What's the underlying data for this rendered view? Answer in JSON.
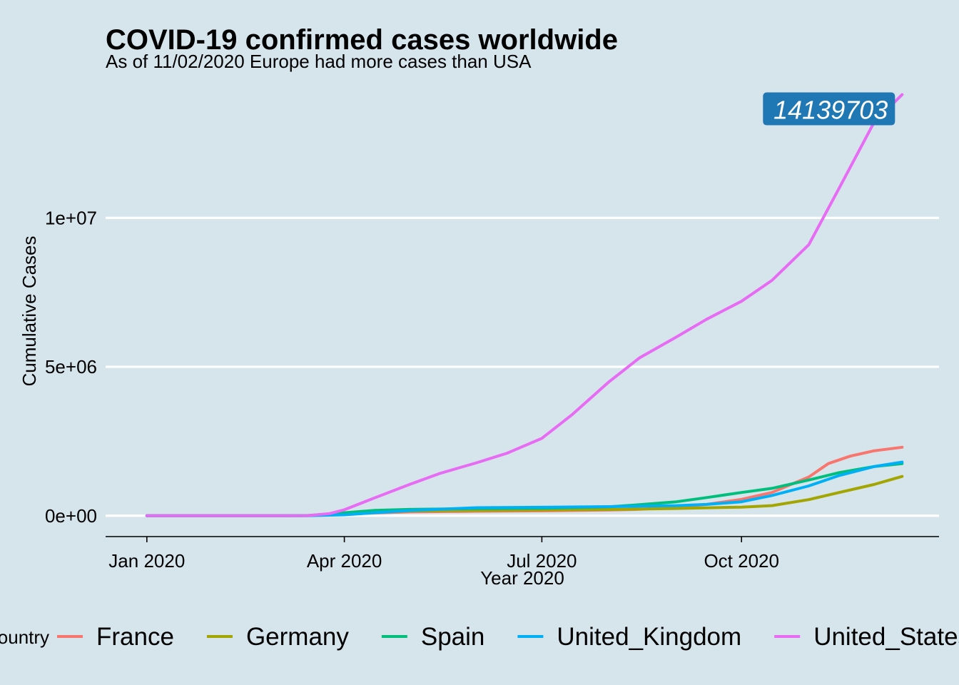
{
  "chart_data": {
    "type": "line",
    "title": "COVID-19 confirmed cases worldwide",
    "subtitle": "As of 11/02/2020 Europe had more cases than USA",
    "xlabel": "Year 2020",
    "ylabel": "Cumulative Cases",
    "x_ticks": [
      {
        "date": "2020-01-01",
        "label": "Jan 2020"
      },
      {
        "date": "2020-04-01",
        "label": "Apr 2020"
      },
      {
        "date": "2020-07-01",
        "label": "Jul 2020"
      },
      {
        "date": "2020-10-01",
        "label": "Oct 2020"
      }
    ],
    "y_ticks": [
      {
        "value": 0,
        "label": "0e+00"
      },
      {
        "value": 5000000,
        "label": "5e+06"
      },
      {
        "value": 10000000,
        "label": "1e+07"
      }
    ],
    "xlim": [
      "2019-12-13",
      "2020-12-31"
    ],
    "ylim": [
      -700000,
      14800000
    ],
    "grid": "horizontal major lines",
    "legend_title": "Country",
    "legend_position": "bottom",
    "annotation": {
      "label": "14139703",
      "date": "2020-12-14",
      "value": 14139703,
      "fill": "#1f78b4"
    },
    "series": [
      {
        "name": "France",
        "color": "#f8766d",
        "points": [
          [
            "2020-01-01",
            0
          ],
          [
            "2020-03-01",
            100
          ],
          [
            "2020-03-15",
            5000
          ],
          [
            "2020-04-01",
            60000
          ],
          [
            "2020-05-01",
            130000
          ],
          [
            "2020-06-01",
            150000
          ],
          [
            "2020-07-01",
            165000
          ],
          [
            "2020-08-01",
            190000
          ],
          [
            "2020-08-15",
            215000
          ],
          [
            "2020-09-01",
            290000
          ],
          [
            "2020-09-15",
            380000
          ],
          [
            "2020-10-01",
            550000
          ],
          [
            "2020-10-15",
            780000
          ],
          [
            "2020-11-01",
            1300000
          ],
          [
            "2020-11-10",
            1750000
          ],
          [
            "2020-11-20",
            2000000
          ],
          [
            "2020-12-01",
            2180000
          ],
          [
            "2020-12-14",
            2300000
          ]
        ]
      },
      {
        "name": "Germany",
        "color": "#a3a500",
        "points": [
          [
            "2020-01-01",
            0
          ],
          [
            "2020-03-01",
            100
          ],
          [
            "2020-03-15",
            6000
          ],
          [
            "2020-04-01",
            70000
          ],
          [
            "2020-05-01",
            160000
          ],
          [
            "2020-06-01",
            182000
          ],
          [
            "2020-07-01",
            195000
          ],
          [
            "2020-08-01",
            210000
          ],
          [
            "2020-09-01",
            245000
          ],
          [
            "2020-10-01",
            290000
          ],
          [
            "2020-10-15",
            340000
          ],
          [
            "2020-11-01",
            540000
          ],
          [
            "2020-11-15",
            780000
          ],
          [
            "2020-12-01",
            1050000
          ],
          [
            "2020-12-14",
            1320000
          ]
        ]
      },
      {
        "name": "Spain",
        "color": "#00bf7d",
        "points": [
          [
            "2020-01-01",
            0
          ],
          [
            "2020-03-01",
            80
          ],
          [
            "2020-03-15",
            7000
          ],
          [
            "2020-04-01",
            100000
          ],
          [
            "2020-04-15",
            180000
          ],
          [
            "2020-05-01",
            213000
          ],
          [
            "2020-06-01",
            240000
          ],
          [
            "2020-07-01",
            250000
          ],
          [
            "2020-08-01",
            300000
          ],
          [
            "2020-08-15",
            370000
          ],
          [
            "2020-09-01",
            470000
          ],
          [
            "2020-09-15",
            610000
          ],
          [
            "2020-10-01",
            780000
          ],
          [
            "2020-10-15",
            920000
          ],
          [
            "2020-11-01",
            1200000
          ],
          [
            "2020-11-15",
            1450000
          ],
          [
            "2020-12-01",
            1650000
          ],
          [
            "2020-12-14",
            1750000
          ]
        ]
      },
      {
        "name": "United_Kingdom",
        "color": "#00b0f6",
        "points": [
          [
            "2020-01-01",
            0
          ],
          [
            "2020-03-01",
            40
          ],
          [
            "2020-03-15",
            1400
          ],
          [
            "2020-04-01",
            30000
          ],
          [
            "2020-04-15",
            100000
          ],
          [
            "2020-05-01",
            175000
          ],
          [
            "2020-06-01",
            270000
          ],
          [
            "2020-07-01",
            285000
          ],
          [
            "2020-08-01",
            305000
          ],
          [
            "2020-09-01",
            340000
          ],
          [
            "2020-09-15",
            380000
          ],
          [
            "2020-10-01",
            470000
          ],
          [
            "2020-10-15",
            680000
          ],
          [
            "2020-11-01",
            1000000
          ],
          [
            "2020-11-15",
            1350000
          ],
          [
            "2020-12-01",
            1650000
          ],
          [
            "2020-12-14",
            1800000
          ]
        ]
      },
      {
        "name": "United_States_of_America",
        "color": "#e76bf3",
        "points": [
          [
            "2020-01-01",
            0
          ],
          [
            "2020-03-01",
            80
          ],
          [
            "2020-03-15",
            3500
          ],
          [
            "2020-03-25",
            70000
          ],
          [
            "2020-04-01",
            200000
          ],
          [
            "2020-04-15",
            600000
          ],
          [
            "2020-05-01",
            1050000
          ],
          [
            "2020-05-15",
            1420000
          ],
          [
            "2020-06-01",
            1780000
          ],
          [
            "2020-06-15",
            2100000
          ],
          [
            "2020-07-01",
            2600000
          ],
          [
            "2020-07-15",
            3400000
          ],
          [
            "2020-08-01",
            4500000
          ],
          [
            "2020-08-15",
            5300000
          ],
          [
            "2020-09-01",
            6000000
          ],
          [
            "2020-09-15",
            6600000
          ],
          [
            "2020-10-01",
            7200000
          ],
          [
            "2020-10-15",
            7900000
          ],
          [
            "2020-11-01",
            9100000
          ],
          [
            "2020-11-15",
            11000000
          ],
          [
            "2020-12-01",
            13200000
          ],
          [
            "2020-12-14",
            14139703
          ]
        ]
      }
    ]
  }
}
